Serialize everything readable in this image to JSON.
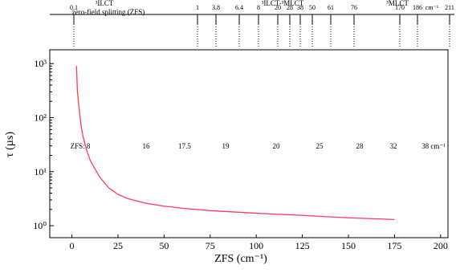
{
  "chart_data": {
    "type": "line",
    "x_label": "ZFS (cm⁻¹)",
    "y_label": "τ (µs)",
    "xlim": [
      -12,
      204
    ],
    "xticks": [
      0,
      25,
      50,
      75,
      100,
      125,
      150,
      175,
      200
    ],
    "ylim": [
      0.6,
      1800
    ],
    "yticks": [
      {
        "value": 1,
        "label": "10⁰"
      },
      {
        "value": 10,
        "label": "10¹"
      },
      {
        "value": 100,
        "label": "10²"
      },
      {
        "value": 1000,
        "label": "10³"
      }
    ],
    "log_y": true,
    "series": [
      {
        "color": "#ff3b5c",
        "x": [
          2.5,
          3,
          4,
          5,
          6,
          8,
          10,
          15,
          20,
          25,
          30,
          40,
          50,
          60,
          75,
          100,
          125,
          150,
          175
        ],
        "values": [
          900,
          300,
          140,
          70,
          45,
          25,
          16,
          8,
          5,
          3.8,
          3.2,
          2.6,
          2.3,
          2.1,
          1.9,
          1.7,
          1.55,
          1.4,
          1.3
        ]
      }
    ],
    "top_axis": {
      "labels": [
        "0.1",
        "1",
        "3.8",
        "6.4",
        "8",
        "20",
        "28",
        "38",
        "50",
        "61",
        "76",
        "170",
        "186",
        "cm⁻¹",
        "211"
      ],
      "regions": [
        "³ILCT",
        "zero-field splitting (ZFS)",
        "³ILCT-³MLCT",
        "³MLCT"
      ]
    },
    "compound_labels": [
      "ZFS: 8",
      "16",
      "17.5",
      "19",
      "20",
      "25",
      "28",
      "32",
      "38 cm⁻¹"
    ]
  }
}
